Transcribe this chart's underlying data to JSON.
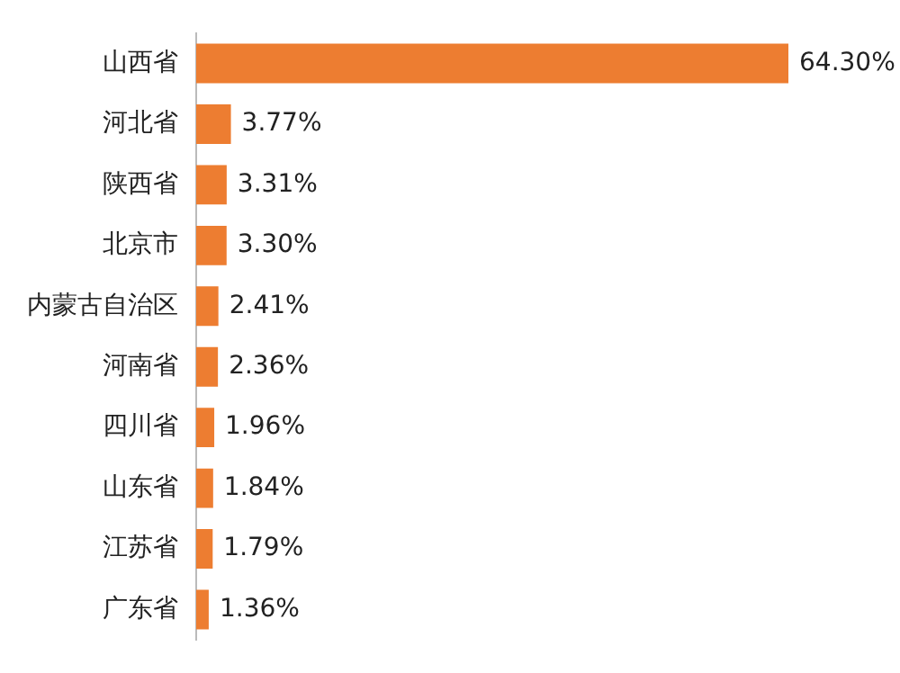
{
  "chart_data": {
    "type": "bar",
    "orientation": "horizontal",
    "categories": [
      "山西省",
      "河北省",
      "陕西省",
      "北京市",
      "内蒙古自治区",
      "河南省",
      "四川省",
      "山东省",
      "江苏省",
      "广东省"
    ],
    "values": [
      64.3,
      3.77,
      3.31,
      3.3,
      2.41,
      2.36,
      1.96,
      1.84,
      1.79,
      1.36
    ],
    "value_labels": [
      "64.30%",
      "3.77%",
      "3.31%",
      "3.30%",
      "2.41%",
      "2.36%",
      "1.96%",
      "1.84%",
      "1.79%",
      "1.36%"
    ],
    "color": "#ed7d31",
    "grid": false,
    "legend": false
  }
}
